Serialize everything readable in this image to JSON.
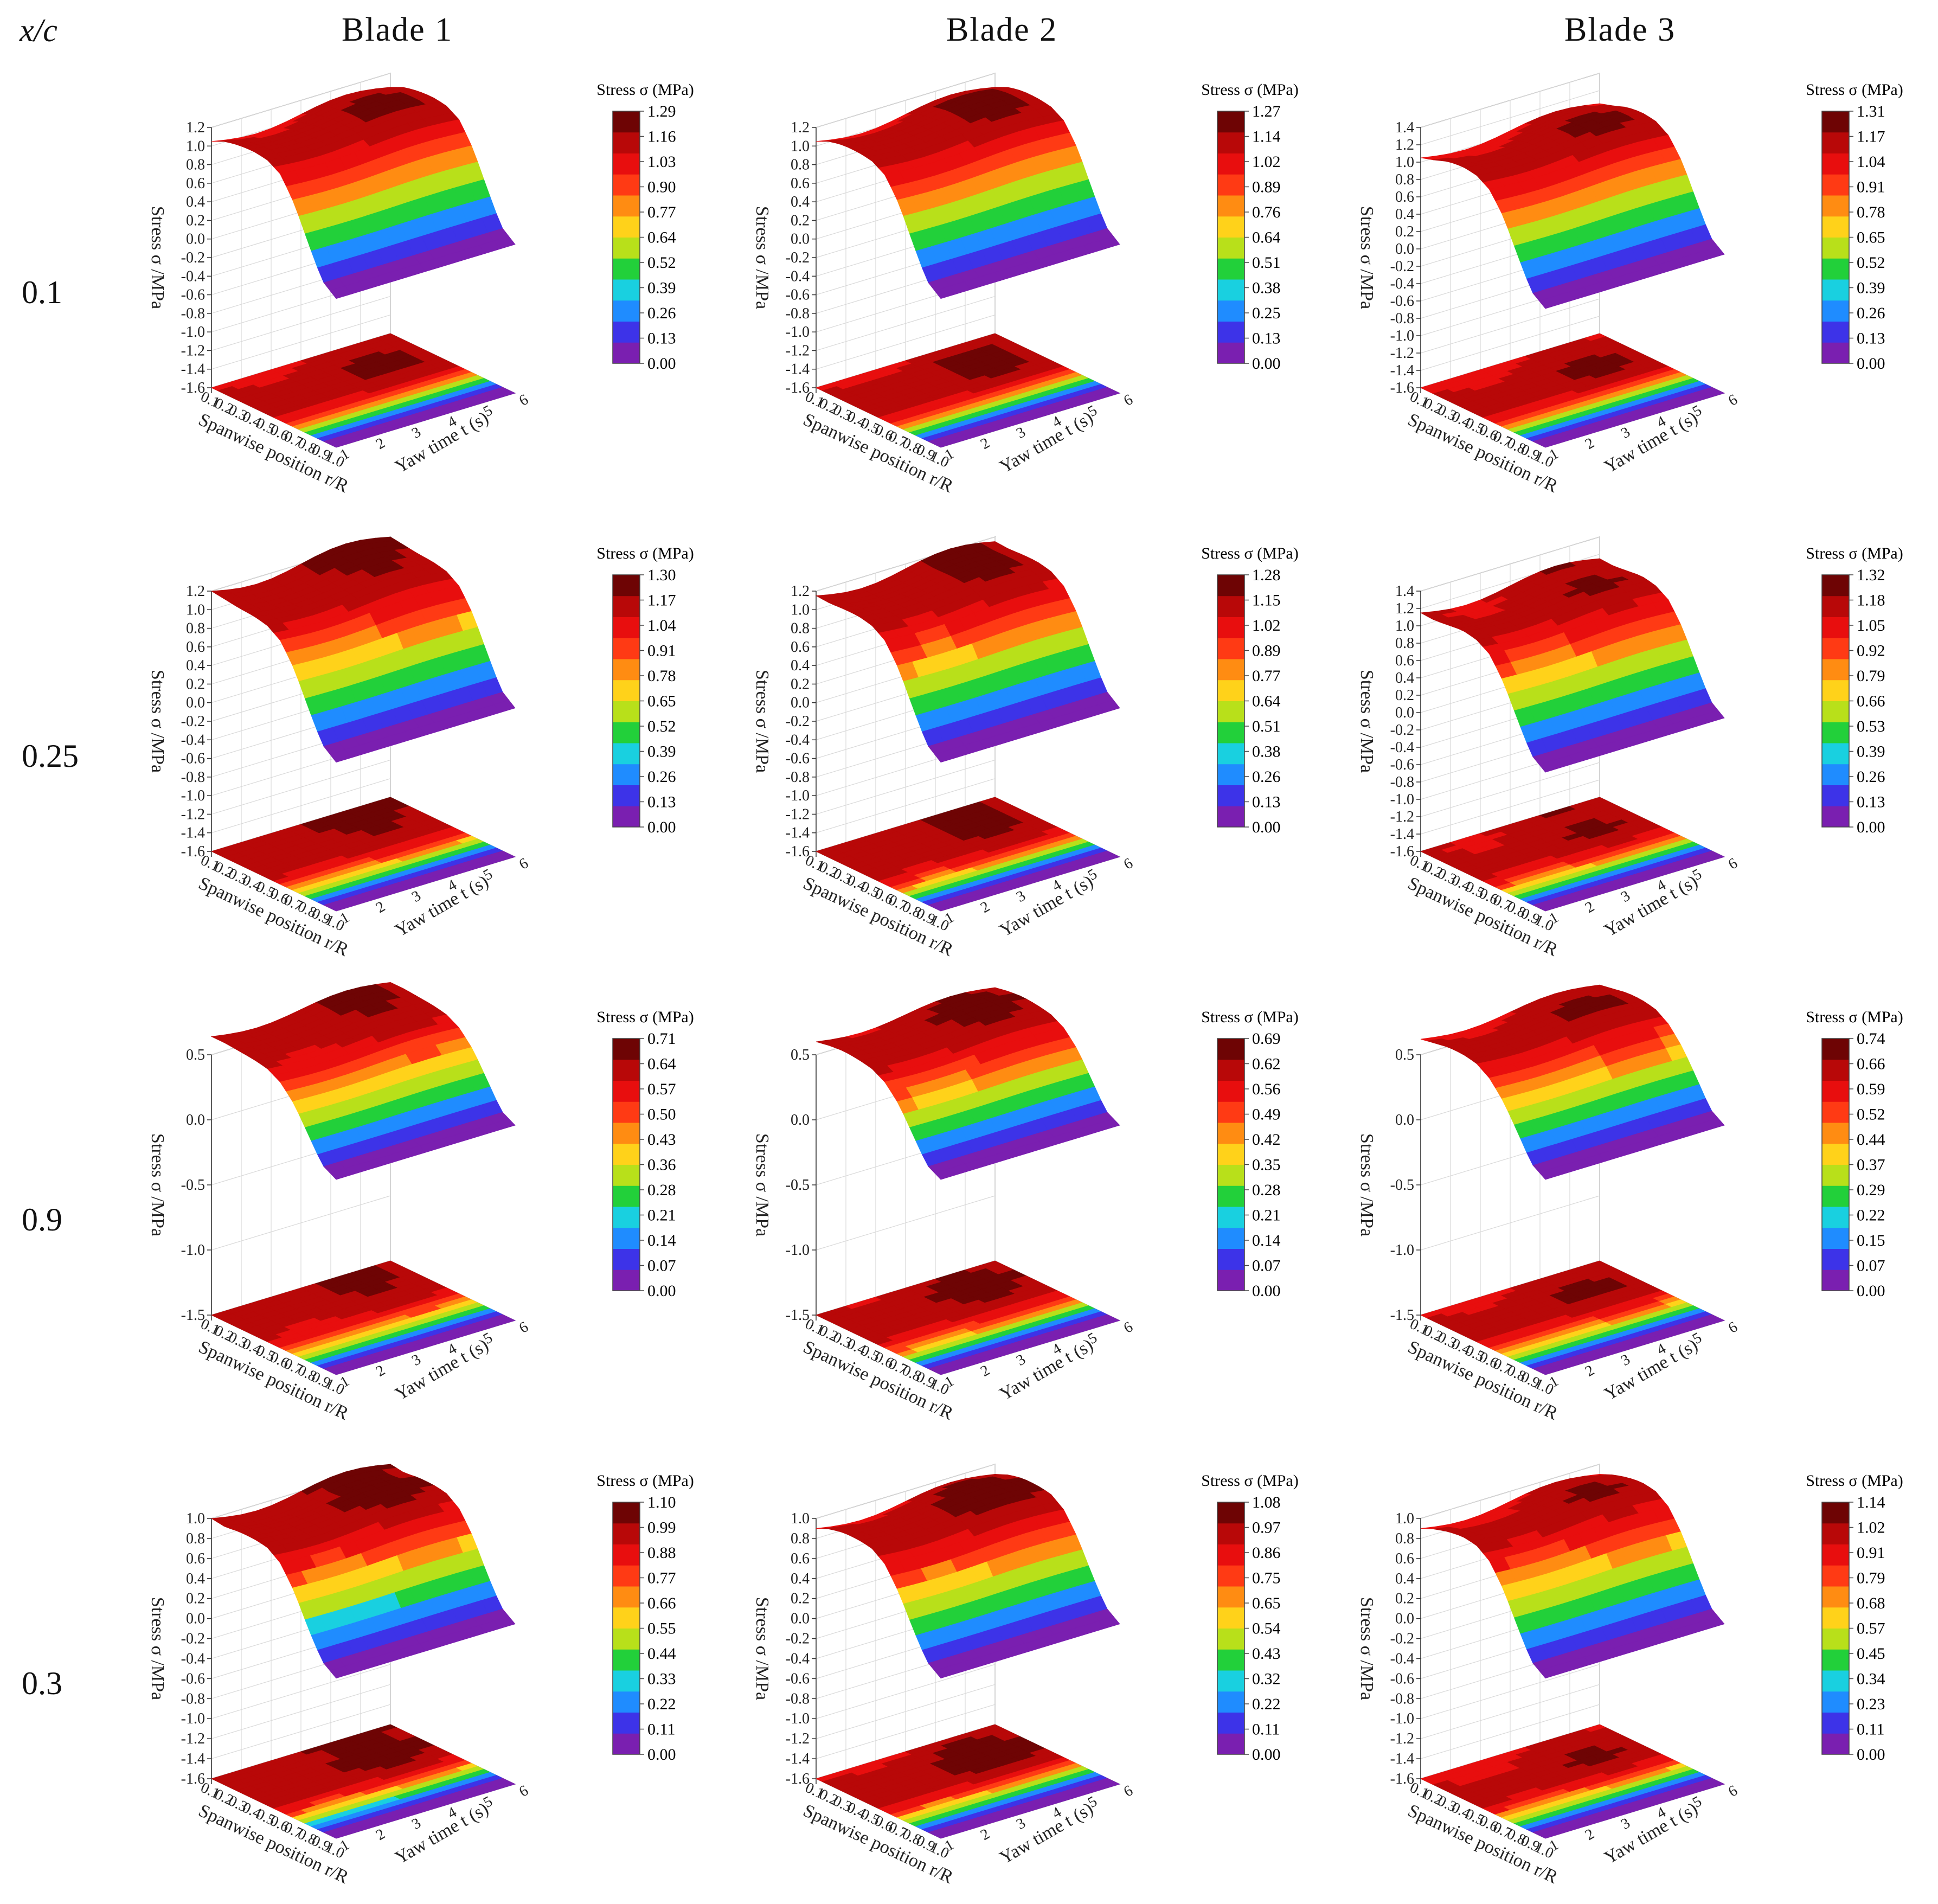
{
  "header": {
    "corner": "x/c",
    "columns": [
      "Blade 1",
      "Blade 2",
      "Blade 3"
    ],
    "rows": [
      "0.1",
      "0.25",
      "0.9",
      "0.3"
    ]
  },
  "axes": {
    "z_label": "Stress σ /MPa",
    "x_label": "Spanwise position r/R",
    "y_label": "Yaw time t (s)",
    "x_ticks": [
      "0.1",
      "0.2",
      "0.3",
      "0.4",
      "0.5",
      "0.6",
      "0.7",
      "0.8",
      "0.9",
      "1.0"
    ],
    "y_ticks": [
      "1",
      "2",
      "3",
      "4",
      "5",
      "6"
    ],
    "colorbar_title": "Stress σ (MPa)"
  },
  "colors": {
    "scale": [
      "#7a1fb0",
      "#3d33e8",
      "#1f8cff",
      "#19d0e0",
      "#22d03a",
      "#b8e01a",
      "#ffd21a",
      "#ff8c12",
      "#ff3a14",
      "#e80e0e",
      "#b80808",
      "#6e0404"
    ],
    "wall": "#ffffff",
    "grid": "#d9d9d9",
    "axis": "#333333"
  },
  "chart_data": [
    {
      "type": "surface3d",
      "row": "0.1",
      "column": "Blade 1",
      "colorbar": [
        "0.00",
        "0.13",
        "0.26",
        "0.39",
        "0.52",
        "0.64",
        "0.77",
        "0.90",
        "1.03",
        "1.16",
        "1.29"
      ],
      "zticks": [
        "-1.6",
        "-1.4",
        "-1.2",
        "-1.0",
        "-0.8",
        "-0.6",
        "-0.4",
        "-0.2",
        "0.0",
        "0.2",
        "0.4",
        "0.6",
        "0.8",
        "1.0",
        "1.2"
      ],
      "profile": [
        1.05,
        1.12,
        1.15,
        1.16,
        1.14,
        1.05,
        0.8,
        0.45,
        0.12,
        0.0
      ],
      "max": 1.29
    },
    {
      "type": "surface3d",
      "row": "0.1",
      "column": "Blade 2",
      "colorbar": [
        "0.00",
        "0.13",
        "0.25",
        "0.38",
        "0.51",
        "0.64",
        "0.76",
        "0.89",
        "1.02",
        "1.14",
        "1.27"
      ],
      "zticks": [
        "-1.6",
        "-1.4",
        "-1.2",
        "-1.0",
        "-0.8",
        "-0.6",
        "-0.4",
        "-0.2",
        "0.0",
        "0.2",
        "0.4",
        "0.6",
        "0.8",
        "1.0",
        "1.2"
      ],
      "profile": [
        1.05,
        1.12,
        1.15,
        1.15,
        1.13,
        1.04,
        0.8,
        0.45,
        0.12,
        0.0
      ],
      "max": 1.27
    },
    {
      "type": "surface3d",
      "row": "0.1",
      "column": "Blade 3",
      "colorbar": [
        "0.00",
        "0.13",
        "0.26",
        "0.39",
        "0.52",
        "0.65",
        "0.78",
        "0.91",
        "1.04",
        "1.17",
        "1.31"
      ],
      "zticks": [
        "-1.6",
        "-1.4",
        "-1.2",
        "-1.0",
        "-0.8",
        "-0.6",
        "-0.4",
        "-0.2",
        "0.0",
        "0.2",
        "0.4",
        "0.6",
        "0.8",
        "1.0",
        "1.2",
        "1.4"
      ],
      "profile": [
        1.05,
        1.1,
        1.16,
        1.18,
        1.16,
        1.06,
        0.82,
        0.46,
        0.12,
        0.0
      ],
      "max": 1.31
    },
    {
      "type": "surface3d",
      "row": "0.25",
      "column": "Blade 1",
      "colorbar": [
        "0.00",
        "0.13",
        "0.26",
        "0.39",
        "0.52",
        "0.65",
        "0.78",
        "0.91",
        "1.04",
        "1.17",
        "1.30"
      ],
      "zticks": [
        "-1.6",
        "-1.4",
        "-1.2",
        "-1.0",
        "-0.8",
        "-0.6",
        "-0.4",
        "-0.2",
        "0.0",
        "0.2",
        "0.4",
        "0.6",
        "0.8",
        "1.0",
        "1.2"
      ],
      "profile": [
        1.2,
        1.18,
        1.16,
        1.15,
        1.12,
        1.02,
        0.78,
        0.44,
        0.12,
        0.0
      ],
      "max": 1.3
    },
    {
      "type": "surface3d",
      "row": "0.25",
      "column": "Blade 2",
      "colorbar": [
        "0.00",
        "0.13",
        "0.26",
        "0.38",
        "0.51",
        "0.64",
        "0.77",
        "0.89",
        "1.02",
        "1.15",
        "1.28"
      ],
      "zticks": [
        "-1.6",
        "-1.4",
        "-1.2",
        "-1.0",
        "-0.8",
        "-0.6",
        "-0.4",
        "-0.2",
        "0.0",
        "0.2",
        "0.4",
        "0.6",
        "0.8",
        "1.0",
        "1.2"
      ],
      "profile": [
        1.15,
        1.14,
        1.15,
        1.15,
        1.12,
        1.02,
        0.78,
        0.44,
        0.12,
        0.0
      ],
      "max": 1.28
    },
    {
      "type": "surface3d",
      "row": "0.25",
      "column": "Blade 3",
      "colorbar": [
        "0.00",
        "0.13",
        "0.26",
        "0.39",
        "0.53",
        "0.66",
        "0.79",
        "0.92",
        "1.05",
        "1.18",
        "1.32"
      ],
      "zticks": [
        "-1.6",
        "-1.4",
        "-1.2",
        "-1.0",
        "-0.8",
        "-0.6",
        "-0.4",
        "-0.2",
        "0.0",
        "0.2",
        "0.4",
        "0.6",
        "0.8",
        "1.0",
        "1.2",
        "1.4"
      ],
      "profile": [
        1.15,
        1.14,
        1.16,
        1.18,
        1.15,
        1.05,
        0.8,
        0.45,
        0.12,
        0.0
      ],
      "max": 1.32
    },
    {
      "type": "surface3d",
      "row": "0.9",
      "column": "Blade 1",
      "colorbar": [
        "0.00",
        "0.07",
        "0.14",
        "0.21",
        "0.28",
        "0.36",
        "0.43",
        "0.50",
        "0.57",
        "0.64",
        "0.71"
      ],
      "zticks": [
        "-1.5",
        "-1.0",
        "-0.5",
        "0.0",
        "0.5"
      ],
      "profile": [
        0.64,
        0.64,
        0.63,
        0.62,
        0.6,
        0.54,
        0.42,
        0.24,
        0.06,
        0.0
      ],
      "max": 0.71
    },
    {
      "type": "surface3d",
      "row": "0.9",
      "column": "Blade 2",
      "colorbar": [
        "0.00",
        "0.07",
        "0.14",
        "0.21",
        "0.28",
        "0.35",
        "0.42",
        "0.49",
        "0.56",
        "0.62",
        "0.69"
      ],
      "zticks": [
        "-1.5",
        "-1.0",
        "-0.5",
        "0.0",
        "0.5"
      ],
      "profile": [
        0.6,
        0.62,
        0.63,
        0.62,
        0.6,
        0.54,
        0.42,
        0.24,
        0.06,
        0.0
      ],
      "max": 0.69
    },
    {
      "type": "surface3d",
      "row": "0.9",
      "column": "Blade 3",
      "colorbar": [
        "0.00",
        "0.07",
        "0.15",
        "0.22",
        "0.29",
        "0.37",
        "0.44",
        "0.52",
        "0.59",
        "0.66",
        "0.74"
      ],
      "zticks": [
        "-1.5",
        "-1.0",
        "-0.5",
        "0.0",
        "0.5"
      ],
      "profile": [
        0.62,
        0.64,
        0.66,
        0.66,
        0.64,
        0.57,
        0.44,
        0.26,
        0.07,
        0.0
      ],
      "max": 0.74
    },
    {
      "type": "surface3d",
      "row": "0.3",
      "column": "Blade 1",
      "colorbar": [
        "0.00",
        "0.11",
        "0.22",
        "0.33",
        "0.44",
        "0.55",
        "0.66",
        "0.77",
        "0.88",
        "0.99",
        "1.10"
      ],
      "zticks": [
        "-1.6",
        "-1.4",
        "-1.2",
        "-1.0",
        "-0.8",
        "-0.6",
        "-0.4",
        "-0.2",
        "0.0",
        "0.2",
        "0.4",
        "0.6",
        "0.8",
        "1.0"
      ],
      "profile": [
        1.0,
        0.98,
        1.0,
        1.0,
        0.98,
        0.88,
        0.66,
        0.36,
        0.1,
        0.0
      ],
      "max": 1.1
    },
    {
      "type": "surface3d",
      "row": "0.3",
      "column": "Blade 2",
      "colorbar": [
        "0.00",
        "0.11",
        "0.22",
        "0.32",
        "0.43",
        "0.54",
        "0.65",
        "0.75",
        "0.86",
        "0.97",
        "1.08"
      ],
      "zticks": [
        "-1.6",
        "-1.4",
        "-1.2",
        "-1.0",
        "-0.8",
        "-0.6",
        "-0.4",
        "-0.2",
        "0.0",
        "0.2",
        "0.4",
        "0.6",
        "0.8",
        "1.0"
      ],
      "profile": [
        0.9,
        0.96,
        0.99,
        0.99,
        0.97,
        0.87,
        0.65,
        0.36,
        0.1,
        0.0
      ],
      "max": 1.08
    },
    {
      "type": "surface3d",
      "row": "0.3",
      "column": "Blade 3",
      "colorbar": [
        "0.00",
        "0.11",
        "0.23",
        "0.34",
        "0.45",
        "0.57",
        "0.68",
        "0.79",
        "0.91",
        "1.02",
        "1.14"
      ],
      "zticks": [
        "-1.6",
        "-1.4",
        "-1.2",
        "-1.0",
        "-0.8",
        "-0.6",
        "-0.4",
        "-0.2",
        "0.0",
        "0.2",
        "0.4",
        "0.6",
        "0.8",
        "1.0"
      ],
      "profile": [
        0.9,
        0.96,
        1.0,
        1.02,
        1.0,
        0.9,
        0.68,
        0.38,
        0.1,
        0.0
      ],
      "max": 1.14
    }
  ]
}
